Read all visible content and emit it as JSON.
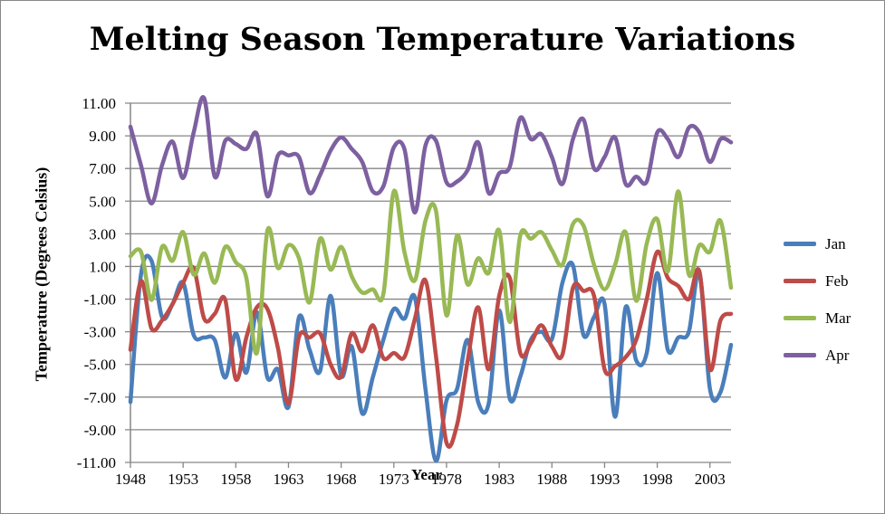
{
  "chart_data": {
    "type": "line",
    "title": "Melting Season Temperature Variations",
    "xlabel": "Year",
    "ylabel": "Temperature (Degrees Celsius)",
    "x_start": 1948,
    "x_end": 2005,
    "x_ticks": [
      "1948",
      "1953",
      "1958",
      "1963",
      "1968",
      "1973",
      "1978",
      "1983",
      "1988",
      "1993",
      "1998",
      "2003"
    ],
    "y_ticks": [
      "11.00",
      "9.00",
      "7.00",
      "5.00",
      "3.00",
      "1.00",
      "-1.00",
      "-3.00",
      "-5.00",
      "-7.00",
      "-9.00",
      "-11.00"
    ],
    "ylim": [
      -11,
      11
    ],
    "grid": true,
    "legend_position": "right",
    "smoothed": true,
    "series": [
      {
        "name": "Jan",
        "color": "#4a7ebb",
        "values": [
          -7.3,
          0.5,
          1.35,
          -2.1,
          -1.3,
          0.0,
          -3.2,
          -3.35,
          -3.5,
          -5.8,
          -3.1,
          -5.5,
          -1.8,
          -5.8,
          -5.3,
          -7.6,
          -2.1,
          -4.1,
          -5.4,
          -0.8,
          -5.7,
          -3.9,
          -8.0,
          -5.8,
          -3.5,
          -1.6,
          -2.2,
          -0.9,
          -6.5,
          -10.9,
          -7.2,
          -6.5,
          -3.5,
          -7.3,
          -7.4,
          -1.7,
          -7.1,
          -5.75,
          -3.5,
          -3.0,
          -3.45,
          0.0,
          1.07,
          -3.2,
          -2.1,
          -1.3,
          -8.2,
          -1.5,
          -4.75,
          -4.3,
          0.6,
          -4.1,
          -3.35,
          -3.0,
          0.6,
          -6.5,
          -6.7,
          -3.8
        ]
      },
      {
        "name": "Feb",
        "color": "#be4b48",
        "values": [
          -4.1,
          0.1,
          -2.8,
          -2.3,
          -1.3,
          0.0,
          0.9,
          -2.2,
          -1.9,
          -1.05,
          -5.9,
          -3.35,
          -1.5,
          -1.6,
          -4.0,
          -7.4,
          -3.3,
          -3.35,
          -3.1,
          -5.0,
          -5.75,
          -3.1,
          -4.2,
          -2.6,
          -4.6,
          -4.3,
          -4.55,
          -2.2,
          0.15,
          -4.5,
          -9.8,
          -8.7,
          -4.8,
          -1.5,
          -5.3,
          -0.8,
          0.3,
          -4.3,
          -3.7,
          -2.6,
          -3.9,
          -4.4,
          -0.3,
          -0.5,
          -0.8,
          -5.3,
          -5.1,
          -4.55,
          -3.5,
          -1.0,
          1.9,
          0.3,
          -0.2,
          -1.0,
          0.7,
          -5.3,
          -2.3,
          -1.9
        ]
      },
      {
        "name": "Mar",
        "color": "#98b954",
        "values": [
          1.63,
          1.9,
          -1.05,
          2.2,
          1.35,
          3.1,
          0.5,
          1.8,
          0.0,
          2.2,
          1.26,
          0.3,
          -4.3,
          3.2,
          0.9,
          2.3,
          1.5,
          -1.2,
          2.7,
          0.8,
          2.2,
          0.4,
          -0.6,
          -0.4,
          -0.7,
          5.6,
          1.9,
          0.15,
          3.8,
          4.4,
          -2.0,
          2.9,
          -0.1,
          1.5,
          0.6,
          3.2,
          -2.4,
          2.9,
          2.7,
          3.1,
          2.0,
          1.1,
          3.6,
          3.5,
          1.1,
          -0.4,
          1.1,
          3.1,
          -1.1,
          2.4,
          3.9,
          0.7,
          5.6,
          0.5,
          2.3,
          1.9,
          3.8,
          -0.3
        ]
      },
      {
        "name": "Apr",
        "color": "#7d60a0",
        "values": [
          9.56,
          7.2,
          4.86,
          7.2,
          8.64,
          6.42,
          9.2,
          11.3,
          6.5,
          8.7,
          8.5,
          8.2,
          9.1,
          5.3,
          7.8,
          7.8,
          7.7,
          5.5,
          6.6,
          8.1,
          8.9,
          8.2,
          7.4,
          5.6,
          5.9,
          8.3,
          8.2,
          4.3,
          8.4,
          8.7,
          6.15,
          6.2,
          6.9,
          8.6,
          5.5,
          6.7,
          7.1,
          10.1,
          8.8,
          9.1,
          7.7,
          6.05,
          8.8,
          10.0,
          7.0,
          7.7,
          8.9,
          6.05,
          6.5,
          6.2,
          9.2,
          8.8,
          7.7,
          9.5,
          9.2,
          7.4,
          8.8,
          8.6
        ]
      }
    ]
  }
}
